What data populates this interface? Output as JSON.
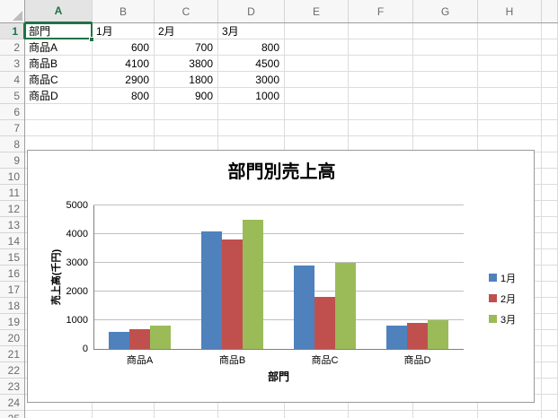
{
  "sheet": {
    "columns": [
      "A",
      "B",
      "C",
      "D",
      "E",
      "F",
      "G",
      "H",
      ""
    ],
    "row_numbers": [
      "1",
      "2",
      "3",
      "4",
      "5",
      "6",
      "7",
      "8",
      "9",
      "10",
      "11",
      "12",
      "13",
      "14",
      "15",
      "16",
      "17",
      "18",
      "19",
      "20",
      "21",
      "22",
      "23",
      "24",
      "25"
    ],
    "selected": {
      "column": "A",
      "row": "1",
      "cell": "A1"
    },
    "cell_rows": [
      {
        "row": 1,
        "cells": [
          {
            "col": 0,
            "text": "部門",
            "align": "left"
          },
          {
            "col": 1,
            "text": "1月",
            "align": "left"
          },
          {
            "col": 2,
            "text": "2月",
            "align": "left"
          },
          {
            "col": 3,
            "text": "3月",
            "align": "left"
          }
        ]
      },
      {
        "row": 2,
        "cells": [
          {
            "col": 0,
            "text": "商品A",
            "align": "left"
          },
          {
            "col": 1,
            "text": "600",
            "align": "right"
          },
          {
            "col": 2,
            "text": "700",
            "align": "right"
          },
          {
            "col": 3,
            "text": "800",
            "align": "right"
          }
        ]
      },
      {
        "row": 3,
        "cells": [
          {
            "col": 0,
            "text": "商品B",
            "align": "left"
          },
          {
            "col": 1,
            "text": "4100",
            "align": "right"
          },
          {
            "col": 2,
            "text": "3800",
            "align": "right"
          },
          {
            "col": 3,
            "text": "4500",
            "align": "right"
          }
        ]
      },
      {
        "row": 4,
        "cells": [
          {
            "col": 0,
            "text": "商品C",
            "align": "left"
          },
          {
            "col": 1,
            "text": "2900",
            "align": "right"
          },
          {
            "col": 2,
            "text": "1800",
            "align": "right"
          },
          {
            "col": 3,
            "text": "3000",
            "align": "right"
          }
        ]
      },
      {
        "row": 5,
        "cells": [
          {
            "col": 0,
            "text": "商品D",
            "align": "left"
          },
          {
            "col": 1,
            "text": "800",
            "align": "right"
          },
          {
            "col": 2,
            "text": "900",
            "align": "right"
          },
          {
            "col": 3,
            "text": "1000",
            "align": "right"
          }
        ]
      }
    ]
  },
  "chart_data": {
    "type": "bar",
    "title": "部門別売上高",
    "xlabel": "部門",
    "ylabel": "売上高(千円)",
    "categories": [
      "商品A",
      "商品B",
      "商品C",
      "商品D"
    ],
    "series": [
      {
        "name": "1月",
        "color": "#4F81BD",
        "values": [
          600,
          4100,
          2900,
          800
        ]
      },
      {
        "name": "2月",
        "color": "#C0504D",
        "values": [
          700,
          3800,
          1800,
          900
        ]
      },
      {
        "name": "3月",
        "color": "#9BBB59",
        "values": [
          800,
          4500,
          3000,
          1000
        ]
      }
    ],
    "ylim": [
      0,
      5000
    ],
    "ytick_step": 1000,
    "ytick_labels": [
      "0",
      "1000",
      "2000",
      "3000",
      "4000",
      "5000"
    ],
    "legend_position": "right",
    "grid": true
  },
  "colors": {
    "selection_green": "#217346",
    "sheet_gridline": "#DCDCDC",
    "header_bg": "#F7F7F7",
    "header_selected_bg": "#E4E4E4",
    "chart_border": "#9A9A9A",
    "chart_gridline": "#BFBFBF",
    "axis_line": "#808080"
  }
}
